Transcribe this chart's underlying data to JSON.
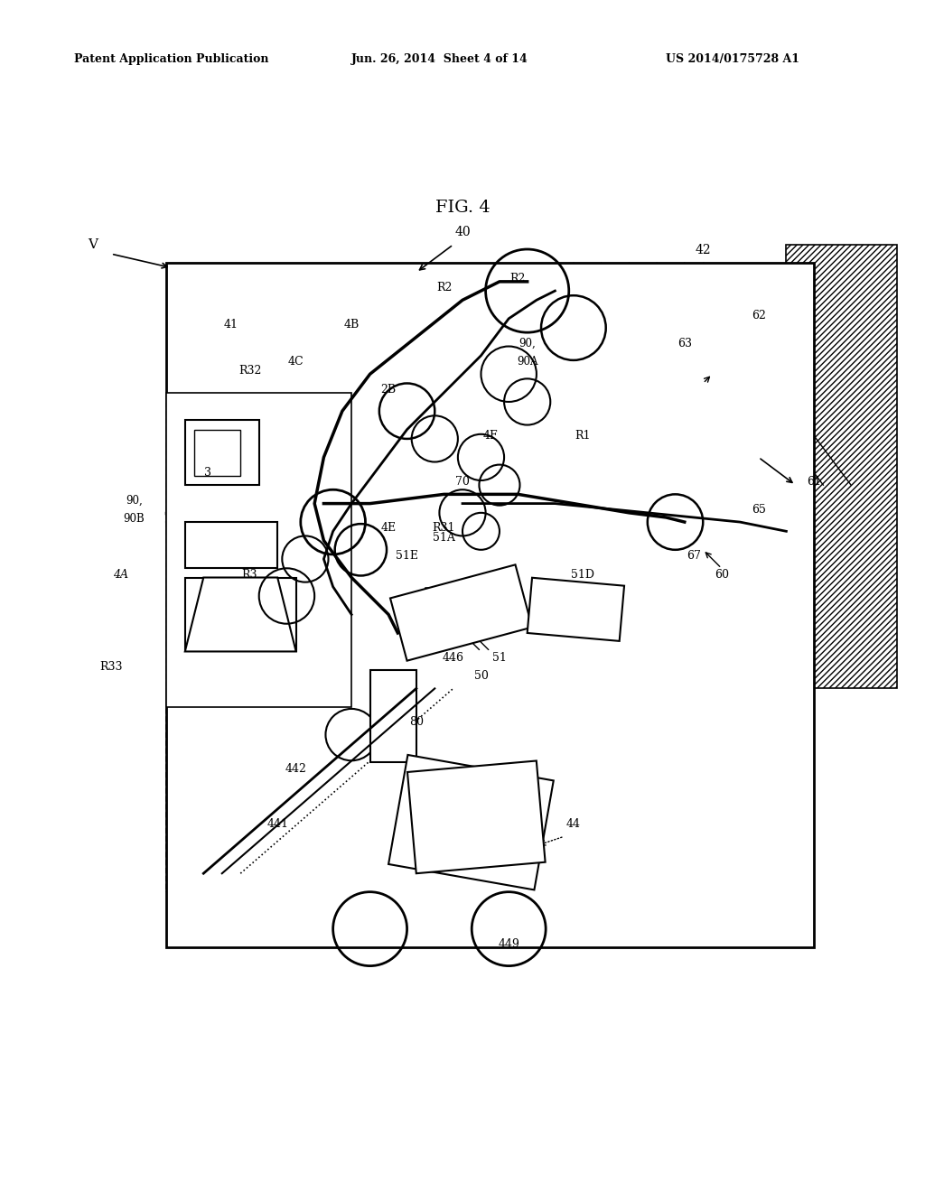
{
  "title": "FIG. 4",
  "header_left": "Patent Application Publication",
  "header_mid": "Jun. 26, 2014  Sheet 4 of 14",
  "header_right": "US 2014/0175728 A1",
  "bg_color": "#ffffff",
  "text_color": "#000000",
  "fig_label": "FIG. 4"
}
